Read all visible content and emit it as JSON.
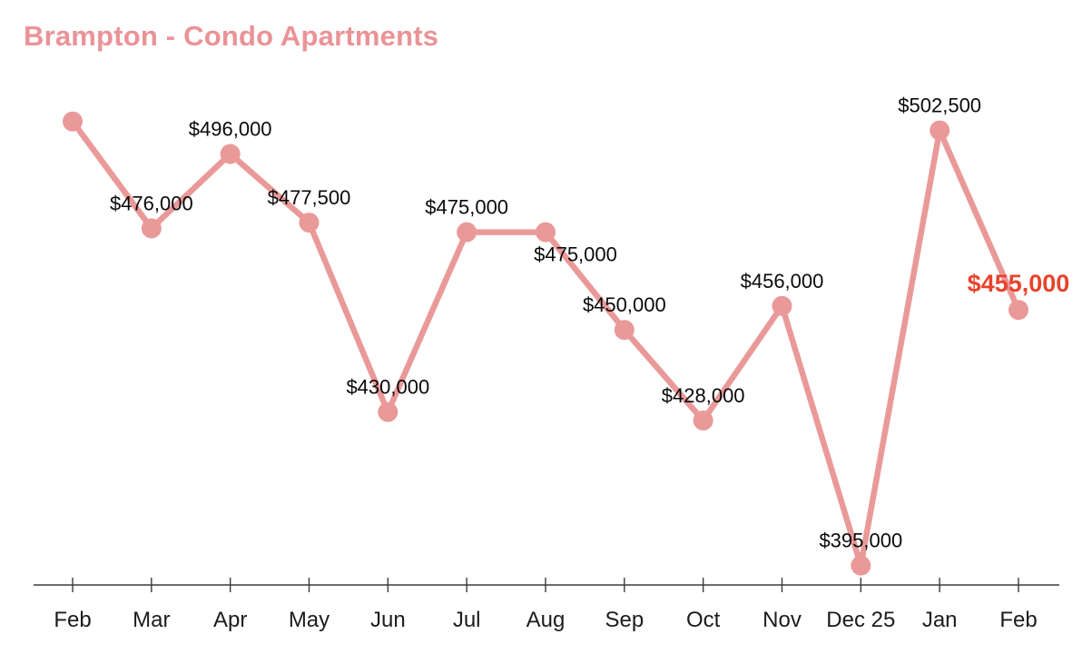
{
  "chart_data": {
    "type": "line",
    "title": "Brampton - Condo Apartments",
    "categories": [
      "Feb",
      "Mar",
      "Apr",
      "May",
      "Jun",
      "Jul",
      "Aug",
      "Sep",
      "Oct",
      "Nov",
      "Dec 25",
      "Jan",
      "Feb"
    ],
    "values": [
      505000,
      476000,
      496000,
      477500,
      430000,
      475000,
      475000,
      450000,
      428000,
      456000,
      395000,
      502500,
      455000
    ],
    "point_labels": [
      "",
      "$476,000",
      "$496,000",
      "$477,500",
      "$430,000",
      "$475,000",
      "$475,000",
      "$450,000",
      "$428,000",
      "$456,000",
      "$395,000",
      "$502,500",
      "$455,000"
    ],
    "highlight_index": 12,
    "highlight_label": "$455,000",
    "colors": {
      "series": "#ea9999",
      "title": "#ea9397",
      "highlight": "#e8432c",
      "point_label": "#0a0a0a",
      "axis_line": "#3c3c3c",
      "axis_label": "#1c1c1c"
    },
    "layout_hints": {
      "y_scale": "log",
      "grid": false,
      "legend": "none",
      "x_axis_ticks": true,
      "label_below_indices": [
        6
      ],
      "approx_value_range": [
        395000,
        505000
      ]
    }
  }
}
